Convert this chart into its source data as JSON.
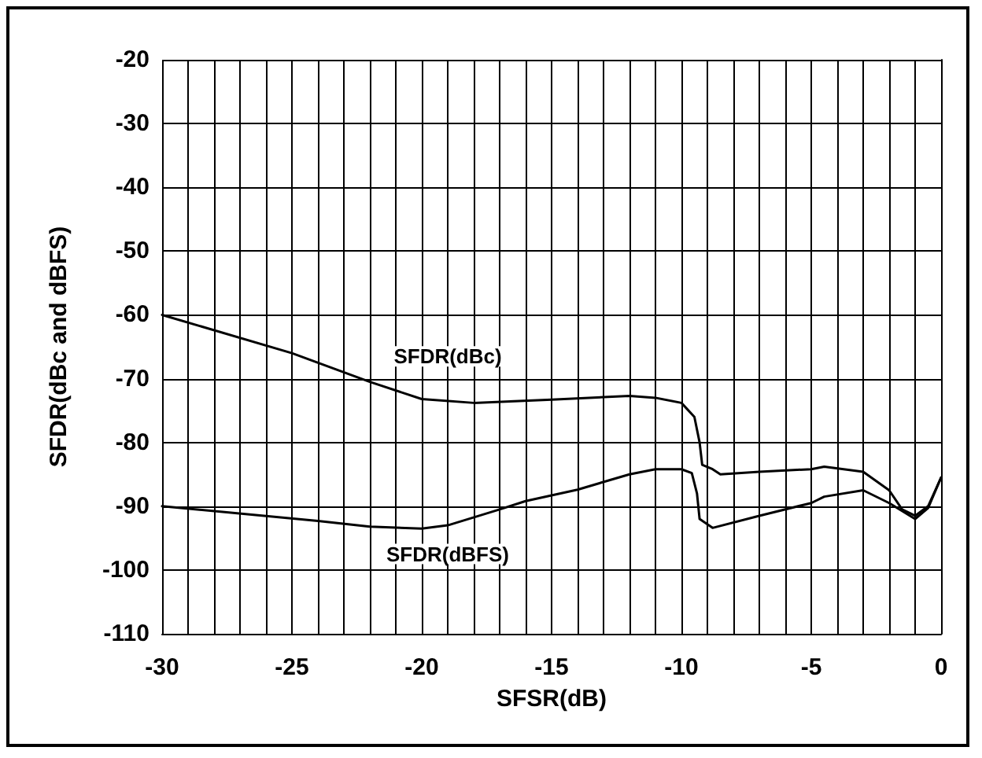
{
  "chart_data": {
    "type": "line",
    "xlabel": "SFSR(dB)",
    "ylabel": "SFDR(dBc and dBFS)",
    "xlim": [
      -30,
      0
    ],
    "xticks": [
      -30,
      -25,
      -20,
      -15,
      -10,
      -5,
      0
    ],
    "ylim": [
      -110,
      -20
    ],
    "yticks": [
      -110,
      -100,
      -90,
      -80,
      -70,
      -60,
      -50,
      -40,
      -30,
      -20
    ],
    "grid": true,
    "legend": false,
    "marker": "none",
    "line_style": "solid",
    "series": [
      {
        "name": "SFDR(dBc)",
        "color": "#000000",
        "x": [
          -30,
          -25,
          -22,
          -20,
          -18,
          -15,
          -12,
          -11,
          -10,
          -9.5,
          -9.3,
          -9.2,
          -8.8,
          -8.5,
          -7,
          -5,
          -4.5,
          -3,
          -2,
          -1.5,
          -1,
          -0.5,
          0
        ],
        "values": [
          -60,
          -66,
          -70.5,
          -73.2,
          -73.8,
          -73.3,
          -72.7,
          -73,
          -73.8,
          -76,
          -80,
          -83.5,
          -84.2,
          -85,
          -84.6,
          -84.2,
          -83.8,
          -84.6,
          -87.5,
          -90.5,
          -91.5,
          -90,
          -85.5
        ]
      },
      {
        "name": "SFDR(dBFS)",
        "color": "#000000",
        "x": [
          -30,
          -24,
          -22,
          -20,
          -19,
          -17,
          -16,
          -14,
          -12,
          -11,
          -10,
          -9.6,
          -9.4,
          -9.3,
          -8.8,
          -7,
          -5,
          -4.5,
          -3,
          -2,
          -1,
          -0.5,
          0
        ],
        "values": [
          -90,
          -92.3,
          -93.2,
          -93.5,
          -93,
          -90.5,
          -89.2,
          -87.4,
          -85,
          -84.2,
          -84.2,
          -84.8,
          -88,
          -92,
          -93.4,
          -91.5,
          -89.5,
          -88.5,
          -87.5,
          -89.5,
          -92,
          -90.3,
          -85.5
        ]
      }
    ]
  }
}
